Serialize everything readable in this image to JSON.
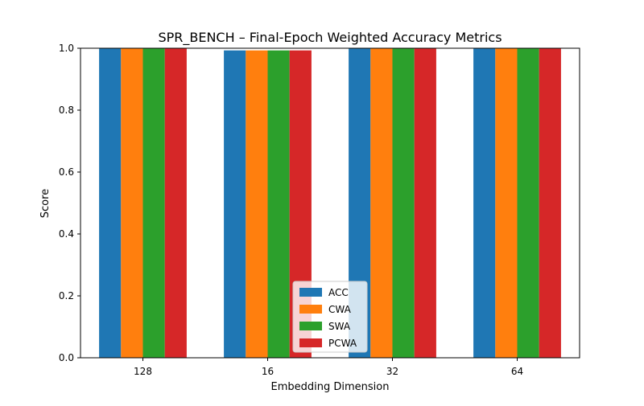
{
  "chart_data": {
    "type": "bar",
    "title": "SPR_BENCH – Final-Epoch Weighted Accuracy Metrics",
    "xlabel": "Embedding Dimension",
    "ylabel": "Score",
    "categories": [
      "128",
      "16",
      "32",
      "64"
    ],
    "ylim": [
      0,
      1.0
    ],
    "yticks": [
      "0.0",
      "0.2",
      "0.4",
      "0.6",
      "0.8",
      "1.0"
    ],
    "legend_position": "bottom-center",
    "grid": false,
    "series": [
      {
        "name": "ACC",
        "color": "#1f77b4",
        "values": [
          1.0,
          0.993,
          1.0,
          1.0
        ]
      },
      {
        "name": "CWA",
        "color": "#ff7f0e",
        "values": [
          1.0,
          0.993,
          1.0,
          1.0
        ]
      },
      {
        "name": "SWA",
        "color": "#2ca02c",
        "values": [
          1.0,
          0.993,
          1.0,
          1.0
        ]
      },
      {
        "name": "PCWA",
        "color": "#d62728",
        "values": [
          1.0,
          0.993,
          1.0,
          1.0
        ]
      }
    ]
  }
}
